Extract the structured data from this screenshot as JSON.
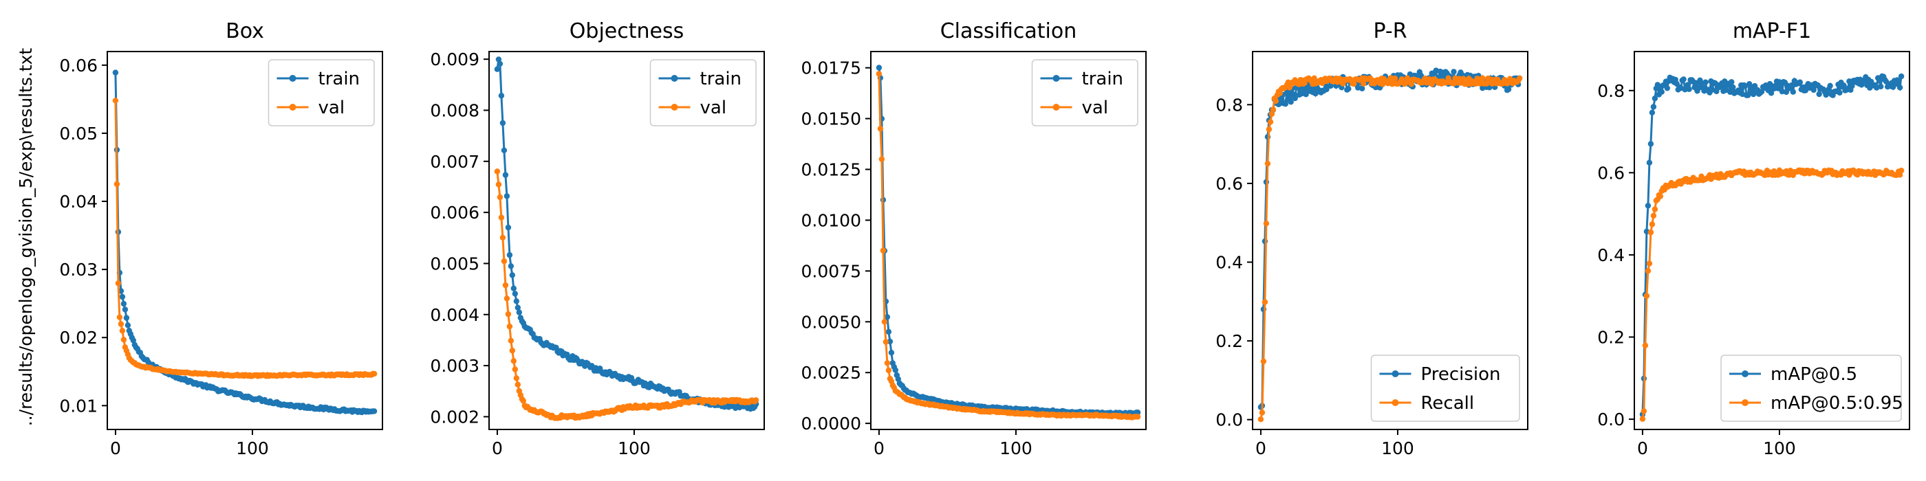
{
  "figure_ylabel": "../results/openlogo_gvision_5/exp\\results.txt",
  "colors": {
    "blue": "#1f77b4",
    "orange": "#ff7f0e"
  },
  "chart_data": [
    {
      "type": "line",
      "title": "Box",
      "xlim": [
        -6,
        195
      ],
      "ylim": [
        0.0065,
        0.062
      ],
      "xticks": [
        0,
        100
      ],
      "yticks": [
        0.01,
        0.02,
        0.03,
        0.04,
        0.05,
        0.06
      ],
      "ytick_labels": [
        "0.01",
        "0.02",
        "0.03",
        "0.04",
        "0.05",
        "0.06"
      ],
      "legend_loc": "top-right",
      "series": [
        {
          "name": "train",
          "color": "#1f77b4",
          "shape": "decay",
          "n": 190,
          "points": [
            [
              0,
              0.0589
            ],
            [
              1,
              0.0475
            ],
            [
              2,
              0.0355
            ],
            [
              3,
              0.0295
            ],
            [
              4,
              0.0268
            ],
            [
              5,
              0.026
            ],
            [
              7,
              0.024
            ],
            [
              10,
              0.021
            ],
            [
              15,
              0.0185
            ],
            [
              20,
              0.017
            ],
            [
              30,
              0.0155
            ],
            [
              50,
              0.0138
            ],
            [
              75,
              0.0123
            ],
            [
              100,
              0.0111
            ],
            [
              125,
              0.0101
            ],
            [
              150,
              0.0096
            ],
            [
              175,
              0.0092
            ],
            [
              189,
              0.009
            ]
          ],
          "noise": 0.0002
        },
        {
          "name": "val",
          "color": "#ff7f0e",
          "shape": "decay",
          "n": 190,
          "points": [
            [
              0,
              0.0548
            ],
            [
              1,
              0.0425
            ],
            [
              2,
              0.028
            ],
            [
              3,
              0.023
            ],
            [
              5,
              0.021
            ],
            [
              7,
              0.0185
            ],
            [
              10,
              0.017
            ],
            [
              15,
              0.016
            ],
            [
              25,
              0.0155
            ],
            [
              40,
              0.015
            ],
            [
              60,
              0.0147
            ],
            [
              80,
              0.0145
            ],
            [
              100,
              0.0144
            ],
            [
              130,
              0.0145
            ],
            [
              160,
              0.0145
            ],
            [
              189,
              0.0146
            ]
          ],
          "noise": 0.0001
        }
      ]
    },
    {
      "type": "line",
      "title": "Objectness",
      "xlim": [
        -6,
        195
      ],
      "ylim": [
        0.00175,
        0.00915
      ],
      "xticks": [
        0,
        100
      ],
      "yticks": [
        0.002,
        0.003,
        0.004,
        0.005,
        0.006,
        0.007,
        0.008,
        0.009
      ],
      "ytick_labels": [
        "0.002",
        "0.003",
        "0.004",
        "0.005",
        "0.006",
        "0.007",
        "0.008",
        "0.009"
      ],
      "legend_loc": "top-right",
      "series": [
        {
          "name": "train",
          "color": "#1f77b4",
          "shape": "decay",
          "n": 190,
          "points": [
            [
              0,
              0.0088
            ],
            [
              1,
              0.009
            ],
            [
              2,
              0.0089
            ],
            [
              3,
              0.0083
            ],
            [
              5,
              0.0072
            ],
            [
              7,
              0.0063
            ],
            [
              9,
              0.0052
            ],
            [
              12,
              0.0045
            ],
            [
              15,
              0.0041
            ],
            [
              20,
              0.0038
            ],
            [
              30,
              0.0035
            ],
            [
              50,
              0.0032
            ],
            [
              75,
              0.0029
            ],
            [
              100,
              0.0027
            ],
            [
              125,
              0.0025
            ],
            [
              150,
              0.0023
            ],
            [
              175,
              0.0022
            ],
            [
              189,
              0.0022
            ]
          ],
          "noise": 5e-05
        },
        {
          "name": "val",
          "color": "#ff7f0e",
          "shape": "dip",
          "n": 190,
          "points": [
            [
              0,
              0.0068
            ],
            [
              2,
              0.0063
            ],
            [
              4,
              0.0055
            ],
            [
              6,
              0.0046
            ],
            [
              8,
              0.004
            ],
            [
              10,
              0.0035
            ],
            [
              12,
              0.0031
            ],
            [
              15,
              0.0026
            ],
            [
              20,
              0.0022
            ],
            [
              30,
              0.0021
            ],
            [
              40,
              0.002
            ],
            [
              60,
              0.002
            ],
            [
              80,
              0.0021
            ],
            [
              100,
              0.0022
            ],
            [
              120,
              0.0022
            ],
            [
              140,
              0.0023
            ],
            [
              160,
              0.0023
            ],
            [
              189,
              0.0023
            ]
          ],
          "noise": 3e-05
        }
      ]
    },
    {
      "type": "line",
      "title": "Classification",
      "xlim": [
        -6,
        195
      ],
      "ylim": [
        -0.0003,
        0.0183
      ],
      "xticks": [
        0,
        100
      ],
      "yticks": [
        0.0,
        0.0025,
        0.005,
        0.0075,
        0.01,
        0.0125,
        0.015,
        0.0175
      ],
      "ytick_labels": [
        "0.0000",
        "0.0025",
        "0.0050",
        "0.0075",
        "0.0100",
        "0.0125",
        "0.0150",
        "0.0175"
      ],
      "legend_loc": "top-right",
      "series": [
        {
          "name": "train",
          "color": "#1f77b4",
          "shape": "decay",
          "n": 190,
          "points": [
            [
              0,
              0.0175
            ],
            [
              1,
              0.017
            ],
            [
              2,
              0.015
            ],
            [
              3,
              0.011
            ],
            [
              4,
              0.0085
            ],
            [
              5,
              0.006
            ],
            [
              7,
              0.0045
            ],
            [
              10,
              0.003
            ],
            [
              15,
              0.002
            ],
            [
              20,
              0.0016
            ],
            [
              30,
              0.0013
            ],
            [
              50,
              0.001
            ],
            [
              75,
              0.0008
            ],
            [
              100,
              0.0007
            ],
            [
              130,
              0.0006
            ],
            [
              160,
              0.0005
            ],
            [
              189,
              0.0005
            ]
          ],
          "noise": 4e-05
        },
        {
          "name": "val",
          "color": "#ff7f0e",
          "shape": "decay",
          "n": 190,
          "points": [
            [
              0,
              0.0172
            ],
            [
              1,
              0.0145
            ],
            [
              2,
              0.013
            ],
            [
              3,
              0.0085
            ],
            [
              4,
              0.005
            ],
            [
              6,
              0.003
            ],
            [
              8,
              0.0022
            ],
            [
              12,
              0.0016
            ],
            [
              20,
              0.0012
            ],
            [
              30,
              0.001
            ],
            [
              50,
              0.0008
            ],
            [
              75,
              0.0006
            ],
            [
              100,
              0.0005
            ],
            [
              130,
              0.0004
            ],
            [
              160,
              0.0004
            ],
            [
              189,
              0.0003
            ]
          ],
          "noise": 3e-05
        }
      ]
    },
    {
      "type": "line",
      "title": "P-R",
      "xlim": [
        -6,
        195
      ],
      "ylim": [
        -0.025,
        0.935
      ],
      "xticks": [
        0,
        100
      ],
      "yticks": [
        0.0,
        0.2,
        0.4,
        0.6,
        0.8
      ],
      "ytick_labels": [
        "0.0",
        "0.2",
        "0.4",
        "0.6",
        "0.8"
      ],
      "legend_loc": "bottom-right",
      "series": [
        {
          "name": "Precision",
          "color": "#1f77b4",
          "shape": "rise",
          "n": 190,
          "points": [
            [
              0,
              0.03
            ],
            [
              1,
              0.04
            ],
            [
              2,
              0.28
            ],
            [
              3,
              0.45
            ],
            [
              4,
              0.6
            ],
            [
              5,
              0.72
            ],
            [
              6,
              0.77
            ],
            [
              8,
              0.78
            ],
            [
              10,
              0.8
            ],
            [
              15,
              0.81
            ],
            [
              20,
              0.82
            ],
            [
              30,
              0.84
            ],
            [
              50,
              0.85
            ],
            [
              80,
              0.86
            ],
            [
              100,
              0.86
            ],
            [
              130,
              0.87
            ],
            [
              160,
              0.86
            ],
            [
              189,
              0.85
            ]
          ],
          "noise": 0.018
        },
        {
          "name": "Recall",
          "color": "#ff7f0e",
          "shape": "rise",
          "n": 190,
          "points": [
            [
              0,
              0.0
            ],
            [
              1,
              0.02
            ],
            [
              2,
              0.15
            ],
            [
              3,
              0.3
            ],
            [
              4,
              0.5
            ],
            [
              5,
              0.65
            ],
            [
              6,
              0.73
            ],
            [
              8,
              0.78
            ],
            [
              10,
              0.81
            ],
            [
              15,
              0.84
            ],
            [
              20,
              0.85
            ],
            [
              30,
              0.86
            ],
            [
              50,
              0.86
            ],
            [
              80,
              0.86
            ],
            [
              100,
              0.86
            ],
            [
              130,
              0.86
            ],
            [
              160,
              0.86
            ],
            [
              189,
              0.86
            ]
          ],
          "noise": 0.008
        }
      ]
    },
    {
      "type": "line",
      "title": "mAP-F1",
      "xlim": [
        -6,
        195
      ],
      "ylim": [
        -0.025,
        0.895
      ],
      "xticks": [
        0,
        100
      ],
      "yticks": [
        0.0,
        0.2,
        0.4,
        0.6,
        0.8
      ],
      "ytick_labels": [
        "0.0",
        "0.2",
        "0.4",
        "0.6",
        "0.8"
      ],
      "legend_loc": "bottom-right",
      "series": [
        {
          "name": "mAP@0.5",
          "color": "#1f77b4",
          "shape": "rise",
          "n": 190,
          "points": [
            [
              0,
              0.01
            ],
            [
              1,
              0.1
            ],
            [
              2,
              0.3
            ],
            [
              3,
              0.46
            ],
            [
              4,
              0.52
            ],
            [
              5,
              0.62
            ],
            [
              6,
              0.68
            ],
            [
              7,
              0.75
            ],
            [
              8,
              0.76
            ],
            [
              10,
              0.8
            ],
            [
              15,
              0.81
            ],
            [
              20,
              0.82
            ],
            [
              40,
              0.81
            ],
            [
              60,
              0.81
            ],
            [
              80,
              0.8
            ],
            [
              100,
              0.81
            ],
            [
              120,
              0.81
            ],
            [
              140,
              0.8
            ],
            [
              160,
              0.82
            ],
            [
              189,
              0.82
            ]
          ],
          "noise": 0.015
        },
        {
          "name": "mAP@0.5:0.95",
          "color": "#ff7f0e",
          "shape": "rise",
          "n": 190,
          "points": [
            [
              0,
              0.0
            ],
            [
              1,
              0.02
            ],
            [
              2,
              0.18
            ],
            [
              3,
              0.3
            ],
            [
              4,
              0.36
            ],
            [
              5,
              0.38
            ],
            [
              6,
              0.45
            ],
            [
              8,
              0.5
            ],
            [
              10,
              0.53
            ],
            [
              15,
              0.56
            ],
            [
              20,
              0.57
            ],
            [
              30,
              0.58
            ],
            [
              50,
              0.59
            ],
            [
              70,
              0.6
            ],
            [
              100,
              0.6
            ],
            [
              130,
              0.6
            ],
            [
              160,
              0.6
            ],
            [
              189,
              0.6
            ]
          ],
          "noise": 0.006
        }
      ]
    }
  ]
}
